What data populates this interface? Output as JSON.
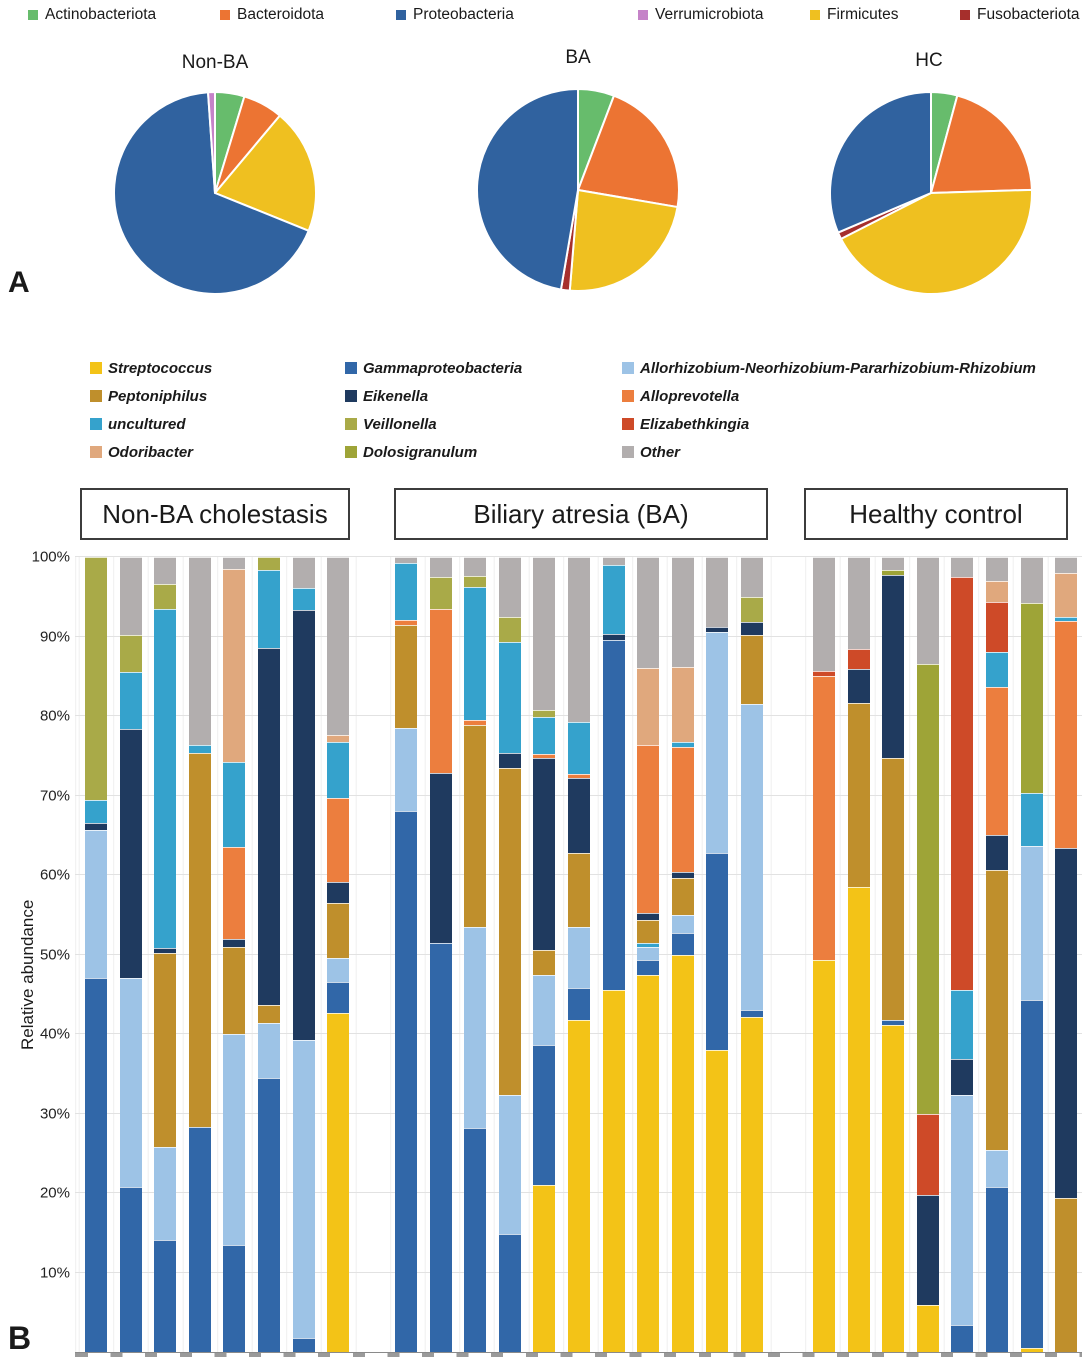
{
  "panel_labels": {
    "a": "A",
    "b": "B"
  },
  "palette": {
    "Actinobacteriota": "#67BC6C",
    "Bacteroidota": "#EC7433",
    "Proteobacteria": "#30629F",
    "Verrumicrobiota": "#C583C8",
    "Firmicutes": "#EFC020",
    "Fusobacteriota": "#A62F2C",
    "Streptococcus": "#F3C317",
    "Gammaproteobacteria": "#3167A8",
    "Allorhizobium-Neorhizobium-Pararhizobium-Rhizobium": "#9DC3E6",
    "Peptoniphilus": "#BF8F2C",
    "Eikenella": "#1F3A5F",
    "Alloprevotella": "#EC7E3E",
    "uncultured": "#35A2CC",
    "Veillonella": "#A9AA48",
    "Elizabethkingia": "#CE4A28",
    "Odoribacter": "#E0A87D",
    "Dolosigranulum": "#9EA437",
    "Other": "#B2AEAE"
  },
  "panel_a": {
    "legend_order": [
      "Actinobacteriota",
      "Bacteroidota",
      "Proteobacteria",
      "Verrumicrobiota",
      "Firmicutes",
      "Fusobacteriota"
    ]
  },
  "panel_b": {
    "legend_columns": [
      [
        "Streptococcus",
        "Peptoniphilus",
        "uncultured",
        "Odoribacter"
      ],
      [
        "Gammaproteobacteria",
        "Eikenella",
        "Veillonella",
        "Dolosigranulum"
      ],
      [
        "Allorhizobium-Neorhizobium-Pararhizobium-Rhizobium",
        "Alloprevotella",
        "Elizabethkingia",
        "Other"
      ]
    ]
  },
  "chart_data": [
    {
      "type": "pie",
      "title": "Non-BA",
      "labels": [
        "Actinobacteriota",
        "Bacteroidota",
        "Firmicutes",
        "Proteobacteria",
        "Verrumicrobiota"
      ],
      "values": [
        4.7,
        6.4,
        20.0,
        67.8,
        1.1
      ]
    },
    {
      "type": "pie",
      "title": "BA",
      "labels": [
        "Actinobacteriota",
        "Bacteroidota",
        "Firmicutes",
        "Fusobacteriota",
        "Proteobacteria"
      ],
      "values": [
        5.8,
        21.9,
        23.6,
        1.4,
        47.3
      ]
    },
    {
      "type": "pie",
      "title": "HC",
      "labels": [
        "Actinobacteriota",
        "Bacteroidota",
        "Firmicutes",
        "Fusobacteriota",
        "Proteobacteria"
      ],
      "values": [
        4.2,
        20.3,
        43.0,
        1.1,
        31.4
      ]
    },
    {
      "type": "bar",
      "stacked": true,
      "ylabel": "Relative abundance",
      "ylim": [
        0,
        100
      ],
      "grid": true,
      "yticks": [
        "100%",
        "90%",
        "80%",
        "70%",
        "60%",
        "50%",
        "40%",
        "30%",
        "20%",
        "10%"
      ],
      "series_order": [
        "Streptococcus",
        "Gammaproteobacteria",
        "Allorhizobium-Neorhizobium-Pararhizobium-Rhizobium",
        "Peptoniphilus",
        "Eikenella",
        "Alloprevotella",
        "uncultured",
        "Veillonella",
        "Elizabethkingia",
        "Odoribacter",
        "Dolosigranulum",
        "Other"
      ],
      "groups": [
        {
          "label": "Non-BA cholestasis",
          "bars": [
            [
              [
                "Gammaproteobacteria",
                47.0
              ],
              [
                "Allorhizobium-Neorhizobium-Pararhizobium-Rhizobium",
                18.7
              ],
              [
                "Eikenella",
                0.8
              ],
              [
                "uncultured",
                2.9
              ],
              [
                "Veillonella",
                30.6
              ]
            ],
            [
              [
                "Gammaproteobacteria",
                20.8
              ],
              [
                "Allorhizobium-Neorhizobium-Pararhizobium-Rhizobium",
                26.2
              ],
              [
                "Eikenella",
                31.4
              ],
              [
                "uncultured",
                7.1
              ],
              [
                "Veillonella",
                4.7
              ],
              [
                "Other",
                9.8
              ]
            ],
            [
              [
                "Gammaproteobacteria",
                14.1
              ],
              [
                "Allorhizobium-Neorhizobium-Pararhizobium-Rhizobium",
                11.7
              ],
              [
                "Peptoniphilus",
                24.4
              ],
              [
                "Eikenella",
                0.6
              ],
              [
                "uncultured",
                42.6
              ],
              [
                "Veillonella",
                3.2
              ],
              [
                "Other",
                3.4
              ]
            ],
            [
              [
                "Gammaproteobacteria",
                28.3
              ],
              [
                "Peptoniphilus",
                47.0
              ],
              [
                "uncultured",
                1.1
              ],
              [
                "Other",
                23.6
              ]
            ],
            [
              [
                "Gammaproteobacteria",
                13.5
              ],
              [
                "Allorhizobium-Neorhizobium-Pararhizobium-Rhizobium",
                26.5
              ],
              [
                "Peptoniphilus",
                11.0
              ],
              [
                "Eikenella",
                1.0
              ],
              [
                "Alloprevotella",
                11.5
              ],
              [
                "uncultured",
                10.7
              ],
              [
                "Odoribacter",
                24.3
              ],
              [
                "Other",
                1.5
              ]
            ],
            [
              [
                "Gammaproteobacteria",
                34.5
              ],
              [
                "Allorhizobium-Neorhizobium-Pararhizobium-Rhizobium",
                6.9
              ],
              [
                "Peptoniphilus",
                2.2
              ],
              [
                "Eikenella",
                44.9
              ],
              [
                "uncultured",
                9.9
              ],
              [
                "Veillonella",
                1.6
              ]
            ],
            [
              [
                "Gammaproteobacteria",
                1.8
              ],
              [
                "Allorhizobium-Neorhizobium-Pararhizobium-Rhizobium",
                37.4
              ],
              [
                "Eikenella",
                54.1
              ],
              [
                "uncultured",
                2.8
              ],
              [
                "Other",
                3.9
              ]
            ],
            [
              [
                "Streptococcus",
                42.7
              ],
              [
                "Gammaproteobacteria",
                3.8
              ],
              [
                "Allorhizobium-Neorhizobium-Pararhizobium-Rhizobium",
                3.0
              ],
              [
                "Peptoniphilus",
                7.0
              ],
              [
                "Eikenella",
                2.6
              ],
              [
                "Alloprevotella",
                10.6
              ],
              [
                "uncultured",
                7.0
              ],
              [
                "Odoribacter",
                0.9
              ],
              [
                "Other",
                22.4
              ]
            ]
          ]
        },
        {
          "label": "Biliary atresia (BA)",
          "bars": [
            [
              [
                "Gammaproteobacteria",
                68.0
              ],
              [
                "Allorhizobium-Neorhizobium-Pararhizobium-Rhizobium",
                10.5
              ],
              [
                "Peptoniphilus",
                12.9
              ],
              [
                "Alloprevotella",
                0.7
              ],
              [
                "uncultured",
                7.1
              ],
              [
                "Other",
                0.8
              ]
            ],
            [
              [
                "Gammaproteobacteria",
                51.5
              ],
              [
                "Eikenella",
                21.3
              ],
              [
                "Alloprevotella",
                20.7
              ],
              [
                "Veillonella",
                4.0
              ],
              [
                "Other",
                2.5
              ]
            ],
            [
              [
                "Gammaproteobacteria",
                28.2
              ],
              [
                "Allorhizobium-Neorhizobium-Pararhizobium-Rhizobium",
                25.3
              ],
              [
                "Peptoniphilus",
                25.4
              ],
              [
                "Alloprevotella",
                0.6
              ],
              [
                "uncultured",
                16.7
              ],
              [
                "Veillonella",
                1.4
              ],
              [
                "Other",
                2.4
              ]
            ],
            [
              [
                "Gammaproteobacteria",
                14.9
              ],
              [
                "Allorhizobium-Neorhizobium-Pararhizobium-Rhizobium",
                17.4
              ],
              [
                "Peptoniphilus",
                41.1
              ],
              [
                "Eikenella",
                2.0
              ],
              [
                "uncultured",
                13.9
              ],
              [
                "Veillonella",
                3.1
              ],
              [
                "Other",
                7.6
              ]
            ],
            [
              [
                "Streptococcus",
                21.0
              ],
              [
                "Gammaproteobacteria",
                17.6
              ],
              [
                "Allorhizobium-Neorhizobium-Pararhizobium-Rhizobium",
                8.8
              ],
              [
                "Peptoniphilus",
                3.2
              ],
              [
                "Eikenella",
                24.1
              ],
              [
                "Alloprevotella",
                0.5
              ],
              [
                "uncultured",
                4.7
              ],
              [
                "Veillonella",
                0.8
              ],
              [
                "Other",
                19.3
              ]
            ],
            [
              [
                "Streptococcus",
                41.8
              ],
              [
                "Gammaproteobacteria",
                4.0
              ],
              [
                "Allorhizobium-Neorhizobium-Pararhizobium-Rhizobium",
                7.7
              ],
              [
                "Peptoniphilus",
                9.3
              ],
              [
                "Eikenella",
                9.4
              ],
              [
                "Alloprevotella",
                0.5
              ],
              [
                "uncultured",
                6.5
              ],
              [
                "Other",
                20.8
              ]
            ],
            [
              [
                "Streptococcus",
                45.5
              ],
              [
                "Gammaproteobacteria",
                44.0
              ],
              [
                "Eikenella",
                0.8
              ],
              [
                "uncultured",
                8.7
              ],
              [
                "Other",
                1.0
              ]
            ],
            [
              [
                "Streptococcus",
                47.4
              ],
              [
                "Gammaproteobacteria",
                1.9
              ],
              [
                "Allorhizobium-Neorhizobium-Pararhizobium-Rhizobium",
                1.6
              ],
              [
                "uncultured",
                0.5
              ],
              [
                "Peptoniphilus",
                3.0
              ],
              [
                "Eikenella",
                0.8
              ],
              [
                "Alloprevotella",
                21.1
              ],
              [
                "Odoribacter",
                9.7
              ],
              [
                "Other",
                14.0
              ]
            ],
            [
              [
                "Streptococcus",
                50.0
              ],
              [
                "Gammaproteobacteria",
                2.7
              ],
              [
                "Allorhizobium-Neorhizobium-Pararhizobium-Rhizobium",
                2.3
              ],
              [
                "Peptoniphilus",
                4.6
              ],
              [
                "Eikenella",
                0.8
              ],
              [
                "Alloprevotella",
                15.7
              ],
              [
                "uncultured",
                0.6
              ],
              [
                "Odoribacter",
                9.5
              ],
              [
                "Other",
                13.8
              ]
            ],
            [
              [
                "Streptococcus",
                38.0
              ],
              [
                "Gammaproteobacteria",
                24.8
              ],
              [
                "Allorhizobium-Neorhizobium-Pararhizobium-Rhizobium",
                27.8
              ],
              [
                "Eikenella",
                0.6
              ],
              [
                "Other",
                8.8
              ]
            ],
            [
              [
                "Streptococcus",
                42.1
              ],
              [
                "Gammaproteobacteria",
                0.9
              ],
              [
                "Allorhizobium-Neorhizobium-Pararhizobium-Rhizobium",
                38.5
              ],
              [
                "Peptoniphilus",
                8.7
              ],
              [
                "Eikenella",
                1.6
              ],
              [
                "Veillonella",
                3.2
              ],
              [
                "Other",
                5.0
              ]
            ]
          ]
        },
        {
          "label": "Healthy control",
          "bars": [
            [
              [
                "Streptococcus",
                49.3
              ],
              [
                "Alloprevotella",
                35.7
              ],
              [
                "Elizabethkingia",
                0.6
              ],
              [
                "Other",
                14.4
              ]
            ],
            [
              [
                "Streptococcus",
                58.5
              ],
              [
                "Peptoniphilus",
                23.1
              ],
              [
                "Eikenella",
                4.3
              ],
              [
                "Elizabethkingia",
                2.5
              ],
              [
                "Other",
                11.6
              ]
            ],
            [
              [
                "Streptococcus",
                41.1
              ],
              [
                "Gammaproteobacteria",
                0.7
              ],
              [
                "Peptoniphilus",
                32.9
              ],
              [
                "Eikenella",
                23.0
              ],
              [
                "Dolosigranulum",
                0.7
              ],
              [
                "Other",
                1.6
              ]
            ],
            [
              [
                "Streptococcus",
                5.9
              ],
              [
                "Eikenella",
                13.8
              ],
              [
                "Elizabethkingia",
                10.3
              ],
              [
                "Dolosigranulum",
                56.5
              ],
              [
                "Other",
                13.5
              ]
            ],
            [
              [
                "Gammaproteobacteria",
                3.4
              ],
              [
                "Allorhizobium-Neorhizobium-Pararhizobium-Rhizobium",
                28.9
              ],
              [
                "Eikenella",
                4.6
              ],
              [
                "uncultured",
                8.6
              ],
              [
                "Elizabethkingia",
                52.0
              ],
              [
                "Other",
                2.5
              ]
            ],
            [
              [
                "Gammaproteobacteria",
                20.8
              ],
              [
                "Allorhizobium-Neorhizobium-Pararhizobium-Rhizobium",
                4.6
              ],
              [
                "Peptoniphilus",
                35.2
              ],
              [
                "Eikenella",
                4.4
              ],
              [
                "Alloprevotella",
                18.7
              ],
              [
                "uncultured",
                4.3
              ],
              [
                "Elizabethkingia",
                6.3
              ],
              [
                "Odoribacter",
                2.7
              ],
              [
                "Other",
                3.0
              ]
            ],
            [
              [
                "Streptococcus",
                0.5
              ],
              [
                "Gammaproteobacteria",
                43.8
              ],
              [
                "Allorhizobium-Neorhizobium-Pararhizobium-Rhizobium",
                19.3
              ],
              [
                "uncultured",
                6.7
              ],
              [
                "Dolosigranulum",
                23.9
              ],
              [
                "Other",
                5.8
              ]
            ],
            [
              [
                "Peptoniphilus",
                19.4
              ],
              [
                "Eikenella",
                44.0
              ],
              [
                "Alloprevotella",
                28.5
              ],
              [
                "uncultured",
                0.6
              ],
              [
                "Odoribacter",
                5.5
              ],
              [
                "Other",
                2.0
              ]
            ]
          ]
        }
      ]
    }
  ]
}
